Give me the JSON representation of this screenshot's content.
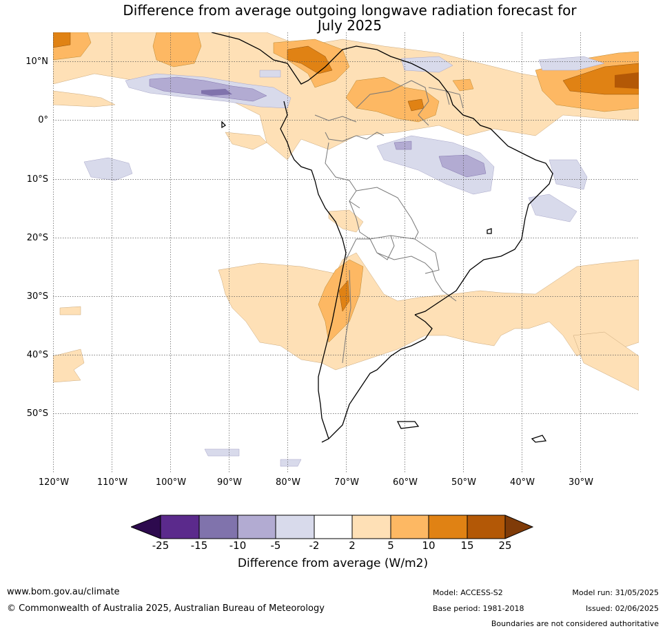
{
  "title_line1": "Difference from average outgoing longwave radiation forecast for",
  "title_line2": "July 2025",
  "lat_labels": [
    "10°N",
    "0°",
    "10°S",
    "20°S",
    "30°S",
    "40°S",
    "50°S"
  ],
  "lon_labels": [
    "120°W",
    "110°W",
    "100°W",
    "90°W",
    "80°W",
    "70°W",
    "60°W",
    "50°W",
    "40°W",
    "30°W"
  ],
  "colorbar": {
    "ticks": [
      "-25",
      "-15",
      "-10",
      "-5",
      "-2",
      "2",
      "5",
      "10",
      "15",
      "25"
    ],
    "label": "Difference from average (W/m2)",
    "colors": {
      "below_-25": "#2d0a4e",
      "-25_-15": "#5b2a8c",
      "-15_-10": "#8073ac",
      "-10_-5": "#b2abd2",
      "-5_-2": "#d8daeb",
      "-2_2": "#ffffff",
      "2_5": "#fee0b6",
      "5_10": "#fdb863",
      "10_15": "#e08214",
      "15_25": "#b35806",
      "above_25": "#7f3b08"
    }
  },
  "footer": {
    "website": "www.bom.gov.au/climate",
    "copyright": "© Commonwealth of Australia 2025, Australian Bureau of Meteorology",
    "model": "Model: ACCESS-S2",
    "base_period": "Base period: 1981-2018",
    "model_run": "Model run: 31/05/2025",
    "issued": "Issued: 02/06/2025",
    "disclaimer": "Boundaries are not considered authoritative"
  }
}
